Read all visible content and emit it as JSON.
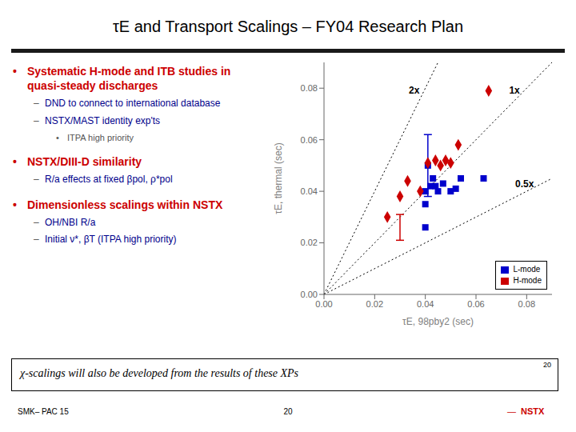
{
  "chart_data": {
    "type": "scatter",
    "title": "τE and Transport Scalings – FY04 Research Plan",
    "xlabel": "τE, 98pby2 (sec)",
    "ylabel": "τE, thermal (sec)",
    "xlim": [
      0.0,
      0.09
    ],
    "ylim": [
      0.0,
      0.09
    ],
    "xticks": [
      {
        "value": 0,
        "label": "0.00"
      },
      0.02,
      0.04,
      0.06,
      0.08
    ],
    "yticks": [
      {
        "value": 0,
        "label": "0.00"
      },
      0.02,
      0.04,
      0.06,
      0.08
    ],
    "grid": false,
    "legend": "lower right",
    "series": [
      {
        "name": "L-mode",
        "color": "#0000cc",
        "marker": "square",
        "x": [
          0.04,
          0.042,
          0.043,
          0.045,
          0.047,
          0.05,
          0.052,
          0.054,
          0.063,
          0.04,
          0.041,
          0.044,
          0.04
        ],
        "values": [
          0.04,
          0.042,
          0.045,
          0.04,
          0.043,
          0.04,
          0.041,
          0.045,
          0.045,
          0.035,
          0.05,
          0.042,
          0.026
        ],
        "error_bars": [
          {
            "x": 0.041,
            "y": 0.05,
            "yerr": 0.012
          }
        ]
      },
      {
        "name": "H-mode",
        "color": "#cc0000",
        "marker": "diamond",
        "x": [
          0.025,
          0.03,
          0.033,
          0.038,
          0.041,
          0.044,
          0.046,
          0.048,
          0.05,
          0.053,
          0.065
        ],
        "values": [
          0.03,
          0.038,
          0.044,
          0.04,
          0.051,
          0.052,
          0.05,
          0.052,
          0.051,
          0.058,
          0.079
        ],
        "error_bars": [
          {
            "x": 0.03,
            "y": 0.026,
            "yerr": 0.005
          }
        ]
      }
    ],
    "reference_lines": [
      {
        "slope": 2.0,
        "label": "2x",
        "color": "#000000",
        "line_style": "dotted"
      },
      {
        "slope": 1.0,
        "label": "1x",
        "color": "#000000",
        "line_style": "dotted"
      },
      {
        "slope": 0.5,
        "label": "0.5x",
        "color": "#000000",
        "line_style": "dotted"
      }
    ],
    "annotations": [
      {
        "level": 1,
        "bullet": "•",
        "bullet_color": "#cc0000",
        "text": "Systematic H-mode and ITB studies in quasi-steady discharges",
        "color": "#cc0000"
      },
      {
        "level": 2,
        "bullet": "–",
        "bullet_color": "#555555",
        "text": "DND to connect to international database",
        "color": "#00008B"
      },
      {
        "level": 2,
        "bullet": "–",
        "bullet_color": "#555555",
        "text": "NSTX/MAST identity exp'ts",
        "color": "#00008B"
      },
      {
        "level": 3,
        "bullet": "•",
        "bullet_color": "#555555",
        "text": "ITPA high priority",
        "color": "#555555"
      },
      {
        "level": 1,
        "bullet": "•",
        "bullet_color": "#cc0000",
        "text": "NSTX/DIII-D similarity",
        "color": "#cc0000"
      },
      {
        "level": 2,
        "bullet": "–",
        "bullet_color": "#555555",
        "text": "R/a effects at fixed βpol, ρ*pol",
        "color": "#00008B"
      },
      {
        "level": 1,
        "bullet": "•",
        "bullet_color": "#cc0000",
        "text": "Dimensionless scalings within NSTX",
        "color": "#cc0000"
      },
      {
        "level": 2,
        "bullet": "–",
        "bullet_color": "#555555",
        "text": "OH/NBI R/a",
        "color": "#00008B"
      },
      {
        "level": 2,
        "bullet": "–",
        "bullet_color": "#555555",
        "text": "Initial ν*, βT (ITPA high priority)",
        "color": "#00008B"
      }
    ],
    "bottom_note": "χ-scalings will also be developed from the results of these XPs",
    "slide_number": "20",
    "footer_left": "SMK– PAC 15",
    "footer_center": "20",
    "footer_logo": [
      "—",
      "NSTX"
    ],
    "footer_logo_color": "#cc0000"
  }
}
